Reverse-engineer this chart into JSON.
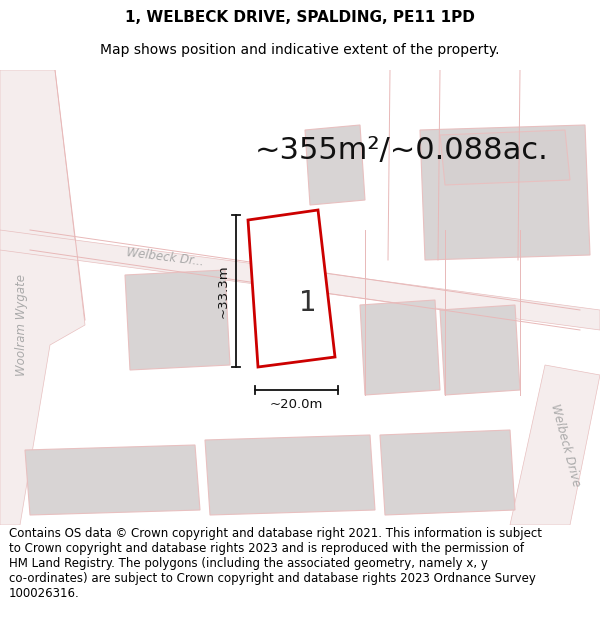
{
  "title_line1": "1, WELBECK DRIVE, SPALDING, PE11 1PD",
  "title_line2": "Map shows position and indicative extent of the property.",
  "area_text": "~355m²/~0.088ac.",
  "dim_width": "~20.0m",
  "dim_height": "~33.3m",
  "plot_label": "1",
  "footer_text": "Contains OS data © Crown copyright and database right 2021. This information is subject\nto Crown copyright and database rights 2023 and is reproduced with the permission of\nHM Land Registry. The polygons (including the associated geometry, namely x, y\nco-ordinates) are subject to Crown copyright and database rights 2023 Ordnance Survey\n100026316.",
  "map_bg": "#f7f4f4",
  "plot_outline_color": "#cc0000",
  "road_fill": "#f5eded",
  "road_edge": "#e8c0c0",
  "block_fill": "#d8d4d4",
  "block_edge": "#e8c0c0",
  "dim_line_color": "#111111",
  "title_fontsize": 11,
  "subtitle_fontsize": 10,
  "area_fontsize": 22,
  "footer_fontsize": 8.5,
  "road_text_color": "#aaaaaa",
  "road_text_size": 8.5
}
